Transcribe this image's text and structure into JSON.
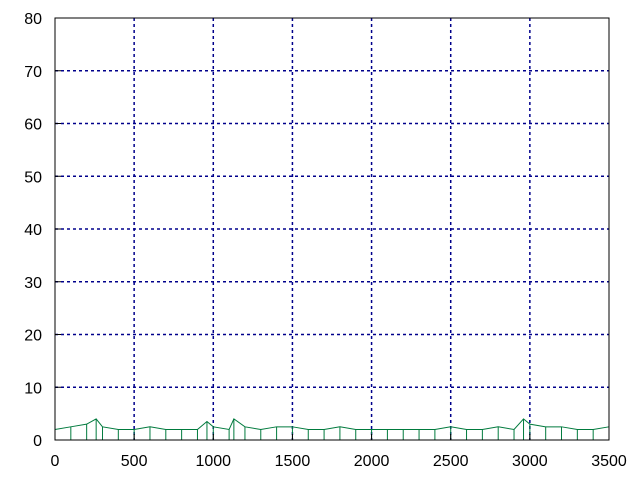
{
  "chart_data": {
    "type": "line",
    "title": "",
    "xlabel": "",
    "ylabel": "",
    "xlim": [
      0,
      3500
    ],
    "ylim": [
      0,
      80
    ],
    "x_ticks": [
      0,
      500,
      1000,
      1500,
      2000,
      2500,
      3000,
      3500
    ],
    "y_ticks": [
      0,
      10,
      20,
      30,
      40,
      50,
      60,
      70,
      80
    ],
    "grid": true,
    "legend": "none",
    "colors": {
      "series": "#007a3d",
      "grid": "#00008b",
      "frame": "#000000"
    },
    "series": [
      {
        "x": [
          0,
          100,
          200,
          260,
          300,
          400,
          500,
          600,
          700,
          800,
          900,
          960,
          1000,
          1100,
          1130,
          1200,
          1300,
          1400,
          1500,
          1600,
          1700,
          1800,
          1900,
          2000,
          2100,
          2200,
          2300,
          2400,
          2500,
          2600,
          2700,
          2800,
          2900,
          2960,
          3000,
          3100,
          3200,
          3300,
          3400,
          3500
        ],
        "values": [
          2,
          2.5,
          3,
          4,
          2.5,
          2,
          2,
          2.5,
          2,
          2,
          2,
          3.5,
          2.5,
          2,
          4,
          2.5,
          2,
          2.5,
          2.5,
          2,
          2,
          2.5,
          2,
          2,
          2,
          2,
          2,
          2,
          2.5,
          2,
          2,
          2.5,
          2,
          4,
          3,
          2.5,
          2.5,
          2,
          2,
          2.5
        ]
      }
    ]
  }
}
